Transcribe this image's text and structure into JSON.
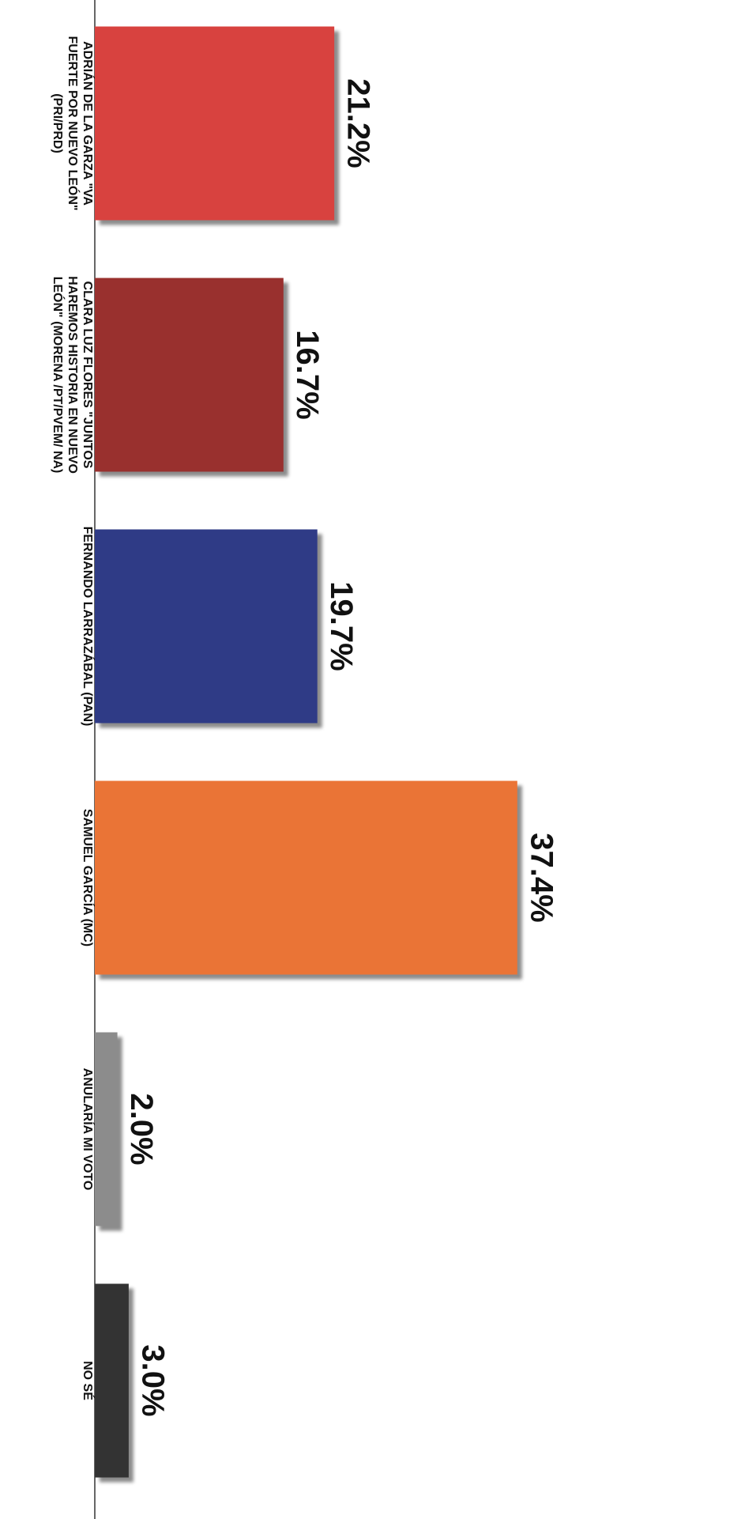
{
  "chart_data": {
    "type": "bar",
    "orientation": "horizontal",
    "categories": [
      "ADRIÁN DE LA GARZA \"VA FUERTE POR NUEVO LEÓN\" (PRI/PRD)",
      "CLARA LUZ FLORES \"JUNTOS HAREMOS HISTORIA EN NUEVO LEÓN\" (MORENA /PT/PVEM/ NA)",
      "FERNANDO LARRAZÁBAL (PAN)",
      "SAMUEL GARCÍA (MC)",
      "ANULARÍA MI VOTO",
      "NO SÉ"
    ],
    "values": [
      21.2,
      16.7,
      19.7,
      37.4,
      2.0,
      3.0
    ],
    "value_labels": [
      "21.2%",
      "16.7%",
      "19.7%",
      "37.4%",
      "2.0%",
      "3.0%"
    ],
    "colors": [
      "#d8423f",
      "#99302e",
      "#2f3b86",
      "#ea7436",
      "#8c8c8c",
      "#333333"
    ]
  }
}
